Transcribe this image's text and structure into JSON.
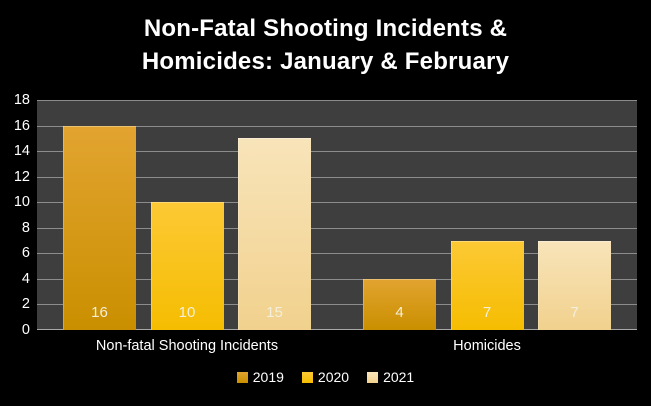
{
  "page_bg": "#000000",
  "chart_data": {
    "type": "bar",
    "title": "Non-Fatal Shooting Incidents & Homicides: January & February",
    "title_lines": [
      "Non-Fatal Shooting Incidents &",
      "Homicides: January & February"
    ],
    "categories": [
      "Non-fatal Shooting Incidents",
      "Homicides"
    ],
    "series": [
      {
        "name": "2019",
        "values": [
          16,
          4
        ],
        "color_top": "#e2a430",
        "color_bottom": "#ca8f00"
      },
      {
        "name": "2020",
        "values": [
          10,
          7
        ],
        "color_top": "#fcc935",
        "color_bottom": "#f5bd01"
      },
      {
        "name": "2021",
        "values": [
          15,
          7
        ],
        "color_top": "#f8e4ba",
        "color_bottom": "#f1d18d"
      }
    ],
    "ylim": [
      0,
      18
    ],
    "ytick_step": 2,
    "yticks": [
      0,
      2,
      4,
      6,
      8,
      10,
      12,
      14,
      16,
      18
    ],
    "grid": true,
    "legend_position": "bottom",
    "data_labels": true,
    "data_label_color": "#f4efda",
    "plot_bg": "#3e3e3e",
    "grid_color": "#8c8c8c",
    "axis_line_color": "#a8a8a8",
    "text_color": "#ffffff"
  }
}
